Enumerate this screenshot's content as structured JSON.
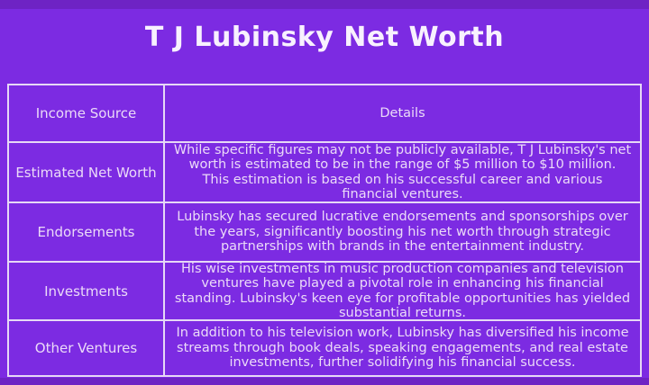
{
  "page": {
    "title": "T J Lubinsky Net Worth"
  },
  "colors": {
    "background": "#7C2BE2",
    "edge_strip": "#6E23C4",
    "table_border": "#E6D8F6",
    "cell_text": "#EBDAF8",
    "title_text": "#F8F1FE"
  },
  "table": {
    "headers": [
      "Income Source",
      "Details"
    ],
    "rows": [
      {
        "source": "Estimated Net Worth",
        "details": "While specific figures may not be publicly available, T J Lubinsky's net worth is estimated to be in the range of $5 million to $10 million. This estimation is based on his successful career and various financial ventures."
      },
      {
        "source": "Endorsements",
        "details": "Lubinsky has secured lucrative endorsements and sponsorships over the years, significantly boosting his net worth through strategic partnerships with brands in the entertainment industry."
      },
      {
        "source": "Investments",
        "details": "His wise investments in music production companies and television ventures have played a pivotal role in enhancing his financial standing. Lubinsky's keen eye for profitable opportunities has yielded substantial returns."
      },
      {
        "source": "Other Ventures",
        "details": "In addition to his television work, Lubinsky has diversified his income streams through book deals, speaking engagements, and real estate investments, further solidifying his financial success."
      }
    ]
  }
}
